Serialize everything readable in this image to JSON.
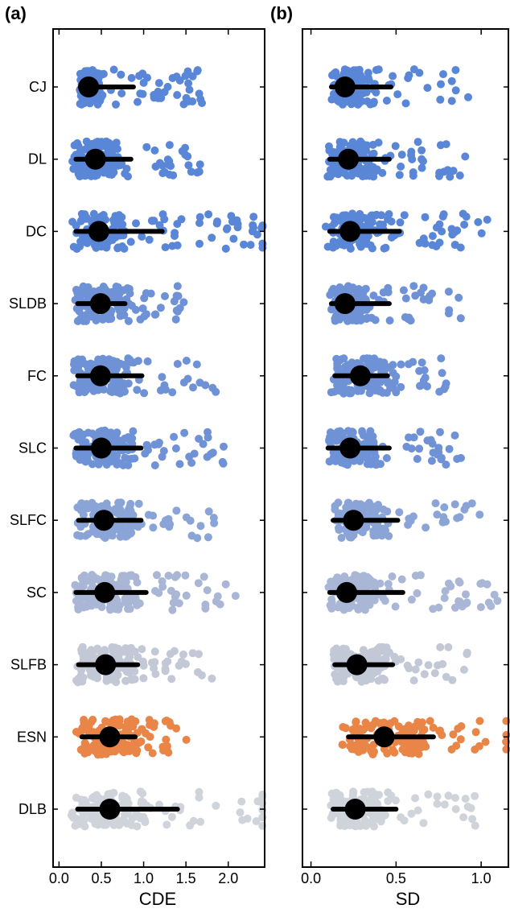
{
  "colors": {
    "blue_dark": "#5a86d8",
    "blue_mid": "#6f92d6",
    "blue_light": "#8ba4d8",
    "slate_light": "#a9b6d6",
    "grey": "#c2c8d6",
    "grey_light": "#cfd3da",
    "orange": "#ea8548",
    "summary": "#000000"
  },
  "categories": [
    "CJ",
    "DL",
    "DC",
    "SLDB",
    "FC",
    "SLC",
    "SLFC",
    "SC",
    "SLFB",
    "ESN",
    "DLB"
  ],
  "category_colors": [
    "blue_dark",
    "blue_dark",
    "blue_dark",
    "blue_mid",
    "blue_mid",
    "blue_mid",
    "blue_light",
    "slate_light",
    "grey",
    "orange",
    "grey_light"
  ],
  "chart_data": [
    {
      "type": "scatter",
      "panel_label": "(a)",
      "xlabel": "CDE",
      "xlim": [
        -0.07,
        2.43
      ],
      "xticks": [
        0.0,
        0.5,
        1.0,
        1.5,
        2.0
      ],
      "xtick_labels": [
        "0.0",
        "0.5",
        "1.0",
        "1.5",
        "2.0"
      ],
      "grid": false,
      "summary": [
        {
          "category": "CJ",
          "median": 0.35,
          "low": 0.25,
          "high": 0.88
        },
        {
          "category": "DL",
          "median": 0.43,
          "low": 0.2,
          "high": 0.85
        },
        {
          "category": "DC",
          "median": 0.47,
          "low": 0.2,
          "high": 1.22
        },
        {
          "category": "SLDB",
          "median": 0.49,
          "low": 0.22,
          "high": 0.78
        },
        {
          "category": "FC",
          "median": 0.49,
          "low": 0.22,
          "high": 0.98
        },
        {
          "category": "SLC",
          "median": 0.5,
          "low": 0.2,
          "high": 0.97
        },
        {
          "category": "SLFC",
          "median": 0.53,
          "low": 0.23,
          "high": 0.97
        },
        {
          "category": "SC",
          "median": 0.54,
          "low": 0.2,
          "high": 1.03
        },
        {
          "category": "SLFB",
          "median": 0.55,
          "low": 0.23,
          "high": 0.93
        },
        {
          "category": "ESN",
          "median": 0.6,
          "low": 0.27,
          "high": 0.9
        },
        {
          "category": "DLB",
          "median": 0.6,
          "low": 0.22,
          "high": 1.4
        }
      ]
    },
    {
      "type": "scatter",
      "panel_label": "(b)",
      "xlabel": "SD",
      "xlim": [
        -0.05,
        1.16
      ],
      "xticks": [
        0.0,
        0.5,
        1.0
      ],
      "xtick_labels": [
        "0.0",
        "0.5",
        "1.0"
      ],
      "grid": false,
      "summary": [
        {
          "category": "CJ",
          "median": 0.2,
          "low": 0.12,
          "high": 0.47
        },
        {
          "category": "DL",
          "median": 0.22,
          "low": 0.11,
          "high": 0.46
        },
        {
          "category": "DC",
          "median": 0.23,
          "low": 0.11,
          "high": 0.52
        },
        {
          "category": "SLDB",
          "median": 0.2,
          "low": 0.12,
          "high": 0.46
        },
        {
          "category": "FC",
          "median": 0.29,
          "low": 0.14,
          "high": 0.45
        },
        {
          "category": "SLC",
          "median": 0.23,
          "low": 0.1,
          "high": 0.46
        },
        {
          "category": "SLFC",
          "median": 0.25,
          "low": 0.13,
          "high": 0.51
        },
        {
          "category": "SC",
          "median": 0.21,
          "low": 0.11,
          "high": 0.54
        },
        {
          "category": "SLFB",
          "median": 0.27,
          "low": 0.14,
          "high": 0.48
        },
        {
          "category": "ESN",
          "median": 0.43,
          "low": 0.22,
          "high": 0.72
        },
        {
          "category": "DLB",
          "median": 0.26,
          "low": 0.13,
          "high": 0.5
        }
      ]
    }
  ]
}
